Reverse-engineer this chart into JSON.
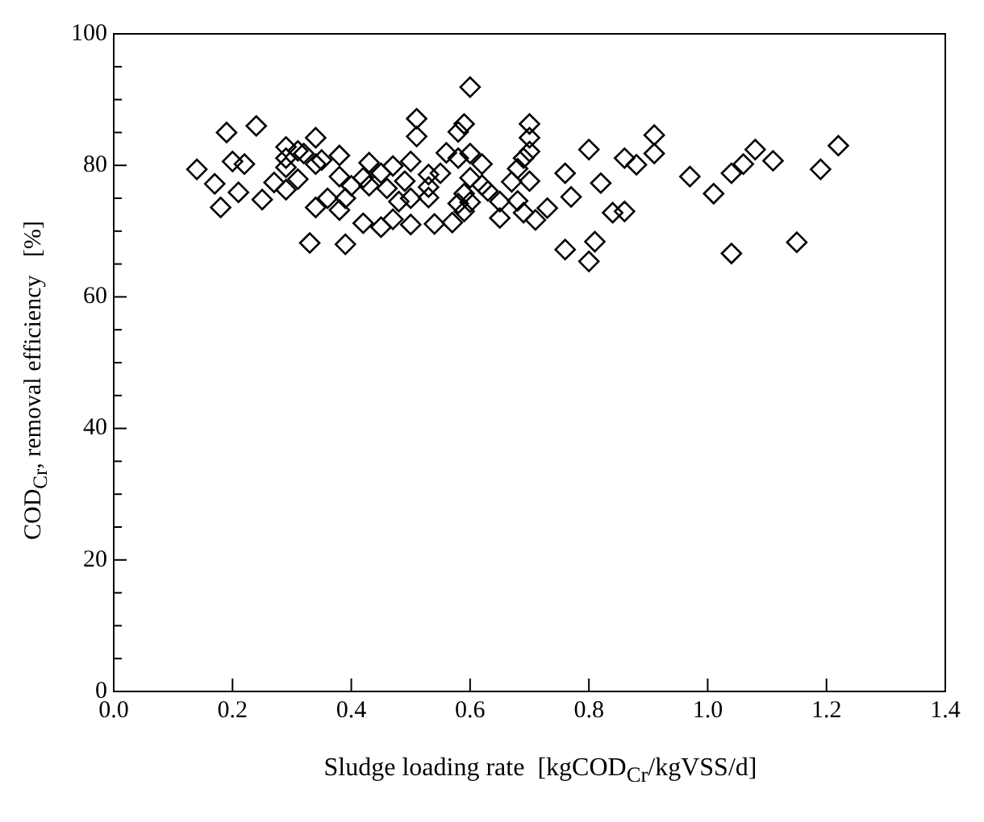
{
  "chart_data": {
    "type": "scatter",
    "xlabel": "Sludge loading rate  [kgCOD$_{Cr}$/kgVSS/d]",
    "ylabel": "COD$_{Cr}$, removal efficiency   [%]",
    "xlim": [
      0,
      1.4
    ],
    "xticks": [
      {
        "value": 0,
        "label": "0.0"
      },
      0.2,
      0.4,
      0.6,
      0.8,
      {
        "value": 1,
        "label": "1.0"
      },
      1.2,
      1.4
    ],
    "ylim": [
      0,
      100
    ],
    "yticks": [
      0,
      {
        "value": 5,
        "label": null
      },
      {
        "value": 10,
        "label": null
      },
      {
        "value": 15,
        "label": null
      },
      20,
      {
        "value": 25,
        "label": null
      },
      {
        "value": 30,
        "label": null
      },
      {
        "value": 35,
        "label": null
      },
      40,
      {
        "value": 45,
        "label": null
      },
      {
        "value": 50,
        "label": null
      },
      {
        "value": 55,
        "label": null
      },
      60,
      {
        "value": 65,
        "label": null
      },
      {
        "value": 70,
        "label": null
      },
      {
        "value": 75,
        "label": null
      },
      80,
      {
        "value": 85,
        "label": null
      },
      {
        "value": 90,
        "label": null
      },
      {
        "value": 95,
        "label": null
      },
      100
    ],
    "grid": false,
    "legend": false,
    "marker": "diamond",
    "series": [
      {
        "color": "#000000",
        "x": [
          0.14,
          0.19,
          0.17,
          0.18,
          0.2,
          0.21,
          0.22,
          0.24,
          0.25,
          0.27,
          0.29,
          0.29,
          0.29,
          0.29,
          0.31,
          0.31,
          0.32,
          0.34,
          0.34,
          0.34,
          0.33,
          0.35,
          0.36,
          0.38,
          0.38,
          0.38,
          0.39,
          0.39,
          0.4,
          0.42,
          0.43,
          0.43,
          0.42,
          0.45,
          0.45,
          0.46,
          0.47,
          0.47,
          0.48,
          0.49,
          0.5,
          0.5,
          0.5,
          0.51,
          0.51,
          0.53,
          0.53,
          0.53,
          0.55,
          0.54,
          0.56,
          0.58,
          0.57,
          0.58,
          0.58,
          0.59,
          0.59,
          0.59,
          0.6,
          0.6,
          0.6,
          0.6,
          0.62,
          0.62,
          0.63,
          0.65,
          0.65,
          0.67,
          0.68,
          0.68,
          0.69,
          0.69,
          0.7,
          0.7,
          0.7,
          0.7,
          0.71,
          0.73,
          0.76,
          0.76,
          0.77,
          0.8,
          0.8,
          0.82,
          0.81,
          0.84,
          0.86,
          0.86,
          0.88,
          0.91,
          0.91,
          0.97,
          1.01,
          1.04,
          1.04,
          1.06,
          1.08,
          1.11,
          1.15,
          1.19,
          1.22
        ],
        "values": [
          79.4,
          85.0,
          77.2,
          73.6,
          80.6,
          75.9,
          80.2,
          86.0,
          74.8,
          77.4,
          82.8,
          81.1,
          79.7,
          76.3,
          82.2,
          77.9,
          81.8,
          84.2,
          80.2,
          73.6,
          68.2,
          80.8,
          75.0,
          81.5,
          78.3,
          73.2,
          75.0,
          68.0,
          76.9,
          78.1,
          80.4,
          76.9,
          71.2,
          70.6,
          78.8,
          76.5,
          79.9,
          71.8,
          74.5,
          77.6,
          80.6,
          75.0,
          71.0,
          87.1,
          84.4,
          78.6,
          75.1,
          76.7,
          78.8,
          71.1,
          81.9,
          81.1,
          71.3,
          74.2,
          85.1,
          86.3,
          75.7,
          73.0,
          81.8,
          91.9,
          78.1,
          74.4,
          77.0,
          80.2,
          76.1,
          74.5,
          72.0,
          77.5,
          79.5,
          74.6,
          81.1,
          72.8,
          86.3,
          84.2,
          82.1,
          77.6,
          71.7,
          73.5,
          78.8,
          67.2,
          75.2,
          65.4,
          82.4,
          77.3,
          68.4,
          72.8,
          81.1,
          73.0,
          80.1,
          81.8,
          84.6,
          78.3,
          75.7,
          78.8,
          66.6,
          80.2,
          82.4,
          80.7,
          68.3,
          79.4,
          83.0
        ]
      }
    ]
  }
}
